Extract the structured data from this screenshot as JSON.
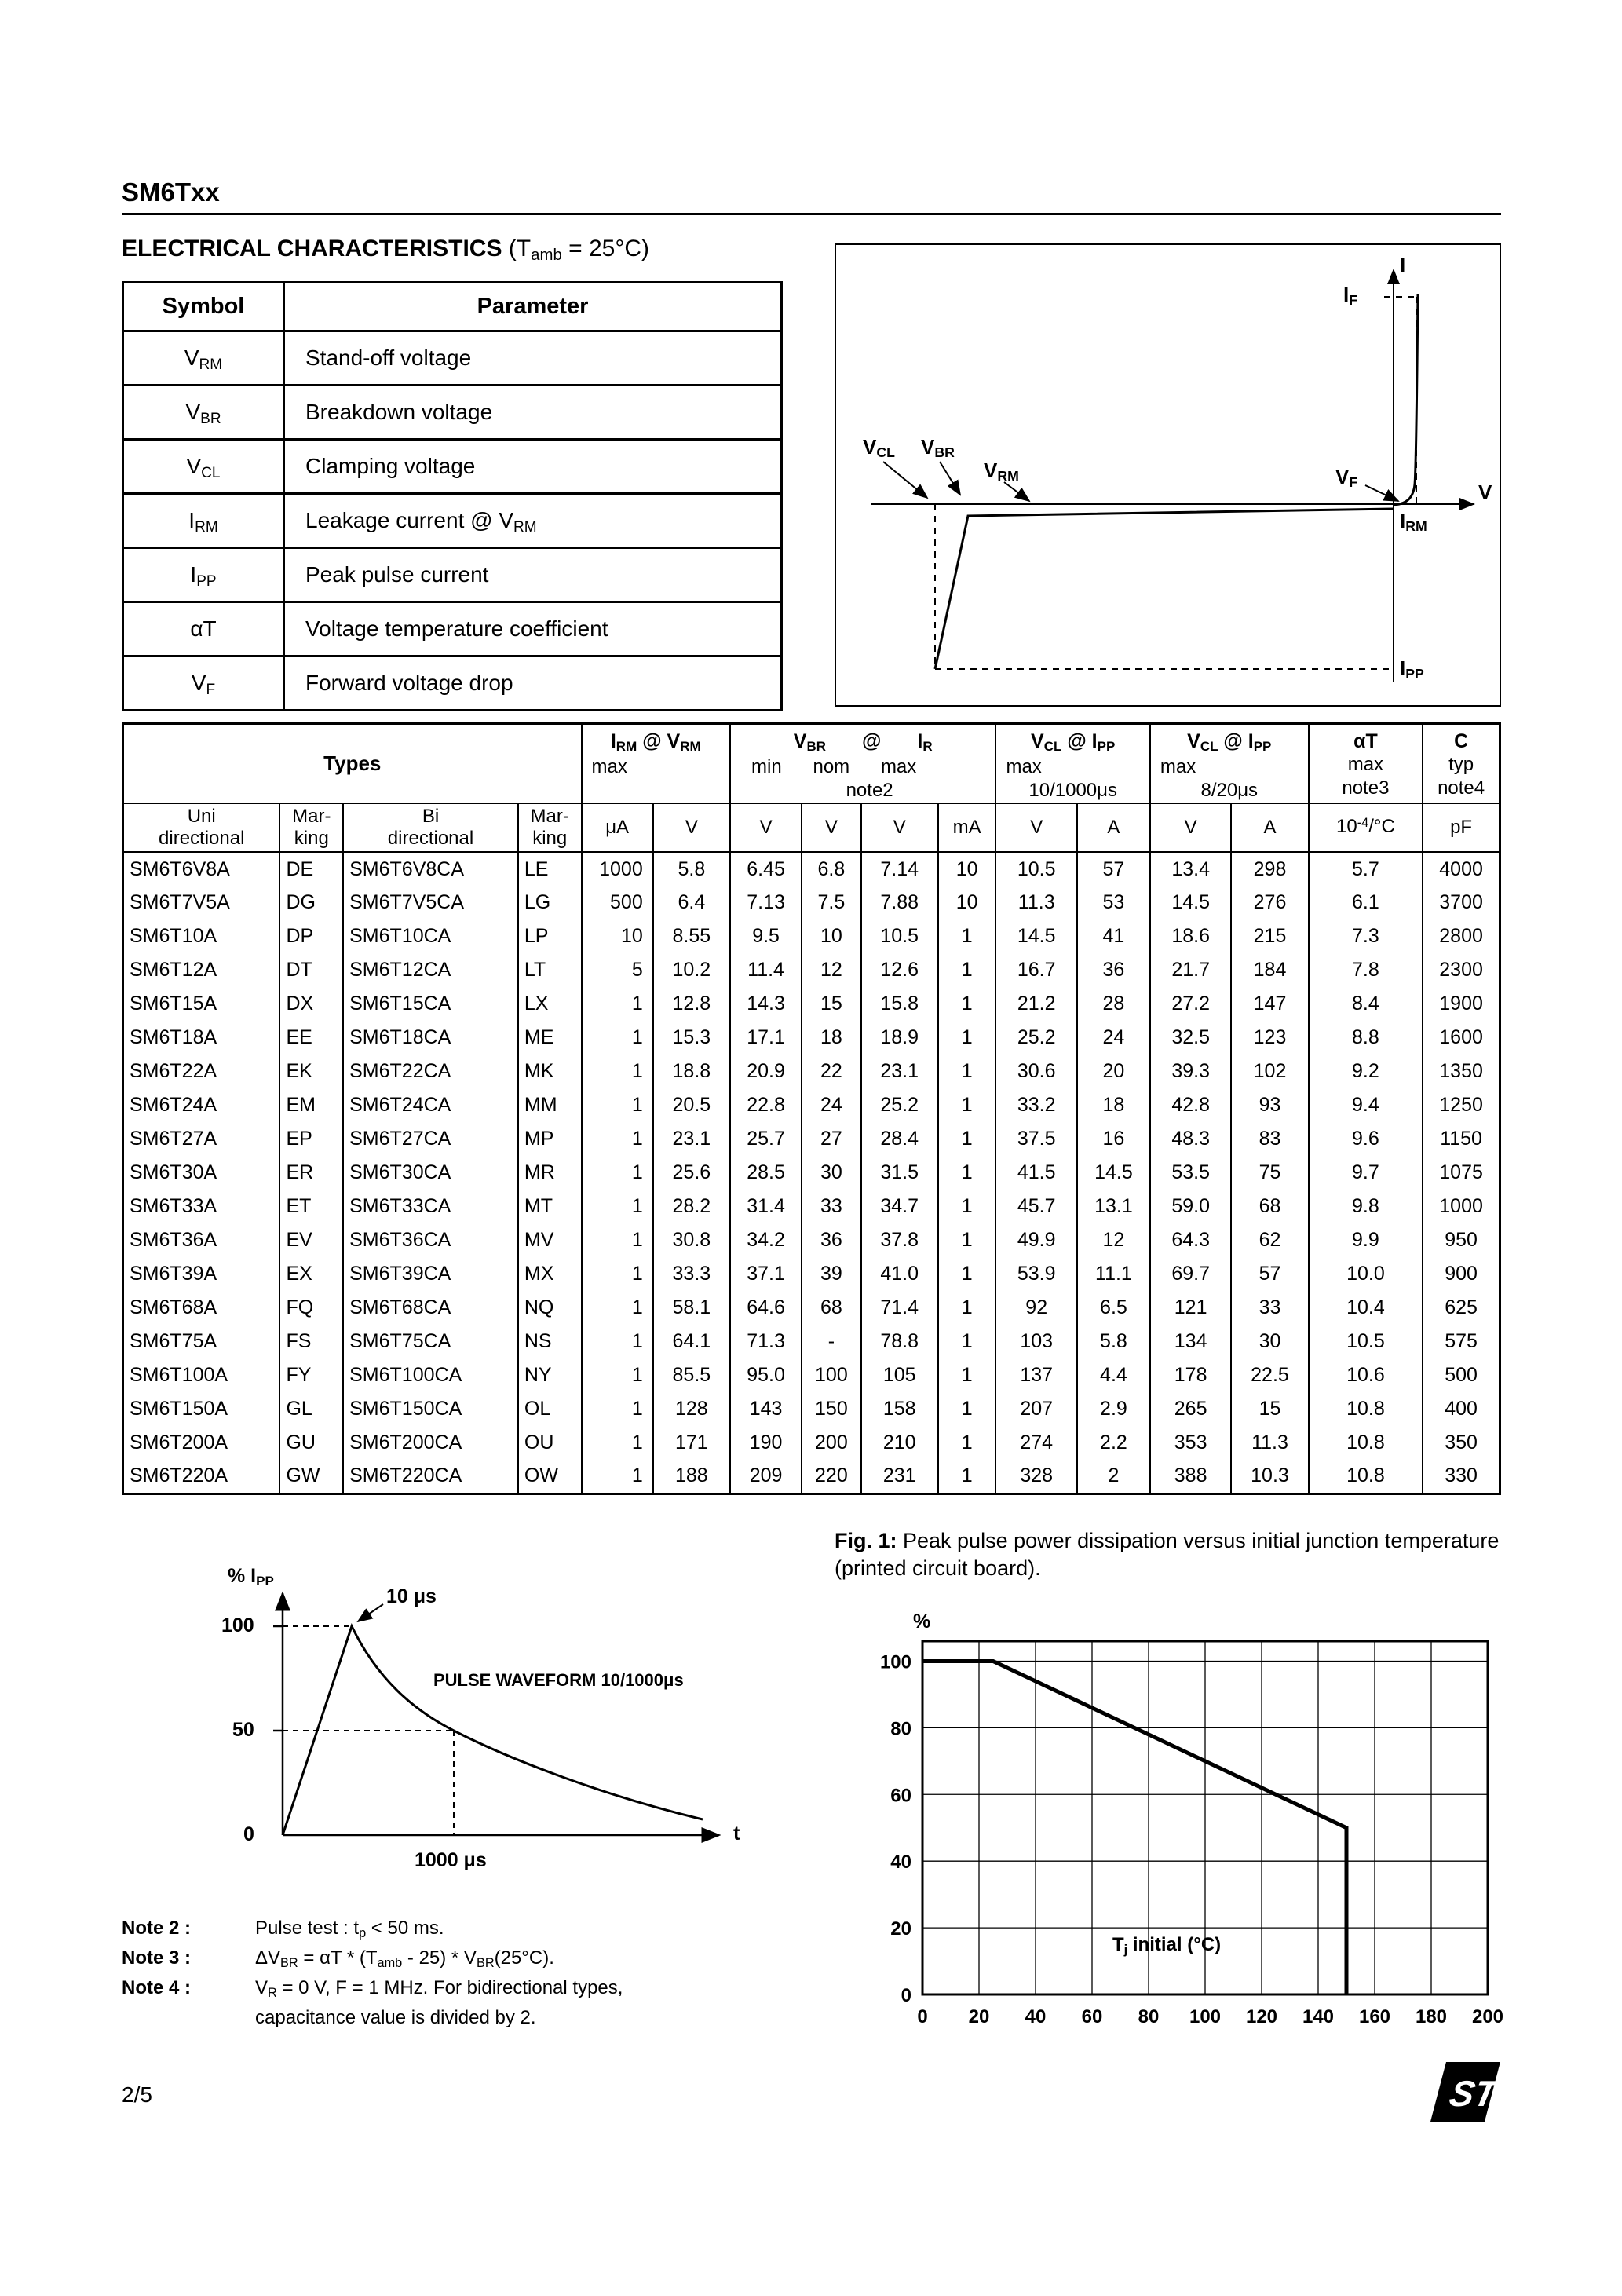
{
  "page": {
    "part": "SM6Txx",
    "section_title": "ELECTRICAL CHARACTERISTICS ",
    "section_cond": "(T~amb~ = 25°C)",
    "page_num": "2/5"
  },
  "logo": {
    "text": "ST"
  },
  "symbol_table": {
    "col1": "Symbol",
    "col2": "Parameter",
    "rows": [
      [
        "V~RM~",
        "Stand-off voltage"
      ],
      [
        "V~BR~",
        "Breakdown voltage"
      ],
      [
        "V~CL~",
        "Clamping voltage"
      ],
      [
        "I~RM~",
        "Leakage current @ V~RM~"
      ],
      [
        "I~PP~",
        "Peak pulse current"
      ],
      [
        "αT",
        "Voltage temperature coefficient"
      ],
      [
        "V~F~",
        "Forward voltage drop"
      ]
    ]
  },
  "iv_diagram": {
    "labels": {
      "i_axis": "I",
      "v_axis": "V",
      "if": "I~F~",
      "vcl": "V~CL~",
      "vbr": "V~BR~",
      "vrm": "V~RM~",
      "vf": "V~F~",
      "irm": "I~RM~",
      "ipp": "I~PP~"
    }
  },
  "main_table": {
    "header": {
      "types": "Types",
      "irm_title": "I~RM~ @ V~RM~",
      "irm_sub": "max",
      "vbr_sym": "V~BR~",
      "vbr_at": "@",
      "vbr_ir": "I~R~",
      "vbr_min": "min",
      "vbr_nom": "nom",
      "vbr_max": "max",
      "vbr_note": "note2",
      "vcl1_title": "V~CL~ @ I~PP~",
      "vcl1_sub": "max",
      "vcl1_dur": "10/1000μs",
      "vcl2_title": "V~CL~ @ I~PP~",
      "vcl2_sub": "max",
      "vcl2_dur": "8/20μs",
      "at_title": "αT",
      "at_sub": "max",
      "at_note": "note3",
      "c_title": "C",
      "c_sub": "typ",
      "c_note": "note4",
      "uni": "Uni\ndirectional",
      "marking1": "Mar-\nking",
      "bi": "Bi\ndirectional",
      "marking2": "Mar-\nking",
      "units": [
        "μA",
        "V",
        "V",
        "V",
        "V",
        "mA",
        "V",
        "A",
        "V",
        "A",
        "10^-4^/°C",
        "pF"
      ]
    },
    "rows": [
      [
        "SM6T6V8A",
        "DE",
        "SM6T6V8CA",
        "LE",
        "1000",
        "5.8",
        "6.45",
        "6.8",
        "7.14",
        "10",
        "10.5",
        "57",
        "13.4",
        "298",
        "5.7",
        "4000"
      ],
      [
        "SM6T7V5A",
        "DG",
        "SM6T7V5CA",
        "LG",
        "500",
        "6.4",
        "7.13",
        "7.5",
        "7.88",
        "10",
        "11.3",
        "53",
        "14.5",
        "276",
        "6.1",
        "3700"
      ],
      [
        "SM6T10A",
        "DP",
        "SM6T10CA",
        "LP",
        "10",
        "8.55",
        "9.5",
        "10",
        "10.5",
        "1",
        "14.5",
        "41",
        "18.6",
        "215",
        "7.3",
        "2800"
      ],
      [
        "SM6T12A",
        "DT",
        "SM6T12CA",
        "LT",
        "5",
        "10.2",
        "11.4",
        "12",
        "12.6",
        "1",
        "16.7",
        "36",
        "21.7",
        "184",
        "7.8",
        "2300"
      ],
      [
        "SM6T15A",
        "DX",
        "SM6T15CA",
        "LX",
        "1",
        "12.8",
        "14.3",
        "15",
        "15.8",
        "1",
        "21.2",
        "28",
        "27.2",
        "147",
        "8.4",
        "1900"
      ],
      [
        "SM6T18A",
        "EE",
        "SM6T18CA",
        "ME",
        "1",
        "15.3",
        "17.1",
        "18",
        "18.9",
        "1",
        "25.2",
        "24",
        "32.5",
        "123",
        "8.8",
        "1600"
      ],
      [
        "SM6T22A",
        "EK",
        "SM6T22CA",
        "MK",
        "1",
        "18.8",
        "20.9",
        "22",
        "23.1",
        "1",
        "30.6",
        "20",
        "39.3",
        "102",
        "9.2",
        "1350"
      ],
      [
        "SM6T24A",
        "EM",
        "SM6T24CA",
        "MM",
        "1",
        "20.5",
        "22.8",
        "24",
        "25.2",
        "1",
        "33.2",
        "18",
        "42.8",
        "93",
        "9.4",
        "1250"
      ],
      [
        "SM6T27A",
        "EP",
        "SM6T27CA",
        "MP",
        "1",
        "23.1",
        "25.7",
        "27",
        "28.4",
        "1",
        "37.5",
        "16",
        "48.3",
        "83",
        "9.6",
        "1150"
      ],
      [
        "SM6T30A",
        "ER",
        "SM6T30CA",
        "MR",
        "1",
        "25.6",
        "28.5",
        "30",
        "31.5",
        "1",
        "41.5",
        "14.5",
        "53.5",
        "75",
        "9.7",
        "1075"
      ],
      [
        "SM6T33A",
        "ET",
        "SM6T33CA",
        "MT",
        "1",
        "28.2",
        "31.4",
        "33",
        "34.7",
        "1",
        "45.7",
        "13.1",
        "59.0",
        "68",
        "9.8",
        "1000"
      ],
      [
        "SM6T36A",
        "EV",
        "SM6T36CA",
        "MV",
        "1",
        "30.8",
        "34.2",
        "36",
        "37.8",
        "1",
        "49.9",
        "12",
        "64.3",
        "62",
        "9.9",
        "950"
      ],
      [
        "SM6T39A",
        "EX",
        "SM6T39CA",
        "MX",
        "1",
        "33.3",
        "37.1",
        "39",
        "41.0",
        "1",
        "53.9",
        "11.1",
        "69.7",
        "57",
        "10.0",
        "900"
      ],
      [
        "SM6T68A",
        "FQ",
        "SM6T68CA",
        "NQ",
        "1",
        "58.1",
        "64.6",
        "68",
        "71.4",
        "1",
        "92",
        "6.5",
        "121",
        "33",
        "10.4",
        "625"
      ],
      [
        "SM6T75A",
        "FS",
        "SM6T75CA",
        "NS",
        "1",
        "64.1",
        "71.3",
        "-",
        "78.8",
        "1",
        "103",
        "5.8",
        "134",
        "30",
        "10.5",
        "575"
      ],
      [
        "SM6T100A",
        "FY",
        "SM6T100CA",
        "NY",
        "1",
        "85.5",
        "95.0",
        "100",
        "105",
        "1",
        "137",
        "4.4",
        "178",
        "22.5",
        "10.6",
        "500"
      ],
      [
        "SM6T150A",
        "GL",
        "SM6T150CA",
        "OL",
        "1",
        "128",
        "143",
        "150",
        "158",
        "1",
        "207",
        "2.9",
        "265",
        "15",
        "10.8",
        "400"
      ],
      [
        "SM6T200A",
        "GU",
        "SM6T200CA",
        "OU",
        "1",
        "171",
        "190",
        "200",
        "210",
        "1",
        "274",
        "2.2",
        "353",
        "11.3",
        "10.8",
        "350"
      ],
      [
        "SM6T220A",
        "GW",
        "SM6T220CA",
        "OW",
        "1",
        "188",
        "209",
        "220",
        "231",
        "1",
        "328",
        "2",
        "388",
        "10.3",
        "10.8",
        "330"
      ]
    ]
  },
  "figure1": {
    "label": "Fig. 1:",
    "text": " Peak pulse power dissipation versus initial junction temperature (printed circuit board)."
  },
  "chart_data": [
    {
      "name": "pulse-waveform",
      "type": "line",
      "title": "PULSE WAVEFORM 10/1000μs",
      "ylabel": "% I~PP~",
      "xlabel": "t",
      "yticks": [
        "100",
        "50",
        "0"
      ],
      "annotations": [
        "10 μs",
        "1000 μs"
      ],
      "points_t_us_vs_pct": [
        [
          0,
          0
        ],
        [
          10,
          100
        ],
        [
          1000,
          50
        ]
      ]
    },
    {
      "name": "derating",
      "type": "line",
      "ylabel": "%",
      "inner_label": "T~j~ initial (°C)",
      "xticks": [
        0,
        20,
        40,
        60,
        80,
        100,
        120,
        140,
        160,
        180,
        200
      ],
      "yticks": [
        0,
        20,
        40,
        60,
        80,
        100
      ],
      "xlim": [
        0,
        200
      ],
      "ylim": [
        0,
        100
      ],
      "grid": true,
      "points": [
        [
          0,
          100
        ],
        [
          25,
          100
        ],
        [
          150,
          50
        ],
        [
          150,
          0
        ]
      ]
    }
  ],
  "notes": [
    {
      "label": "Note 2 :",
      "text": "Pulse test : t~p~ < 50 ms."
    },
    {
      "label": "Note 3 :",
      "text": "ΔV~BR~ = αT * (T~amb~ - 25) * V~BR~(25°C)."
    },
    {
      "label": "Note 4 :",
      "text": "V~R~ = 0 V,  F = 1 MHz. For bidirectional types,\ncapacitance value is divided by 2."
    }
  ]
}
